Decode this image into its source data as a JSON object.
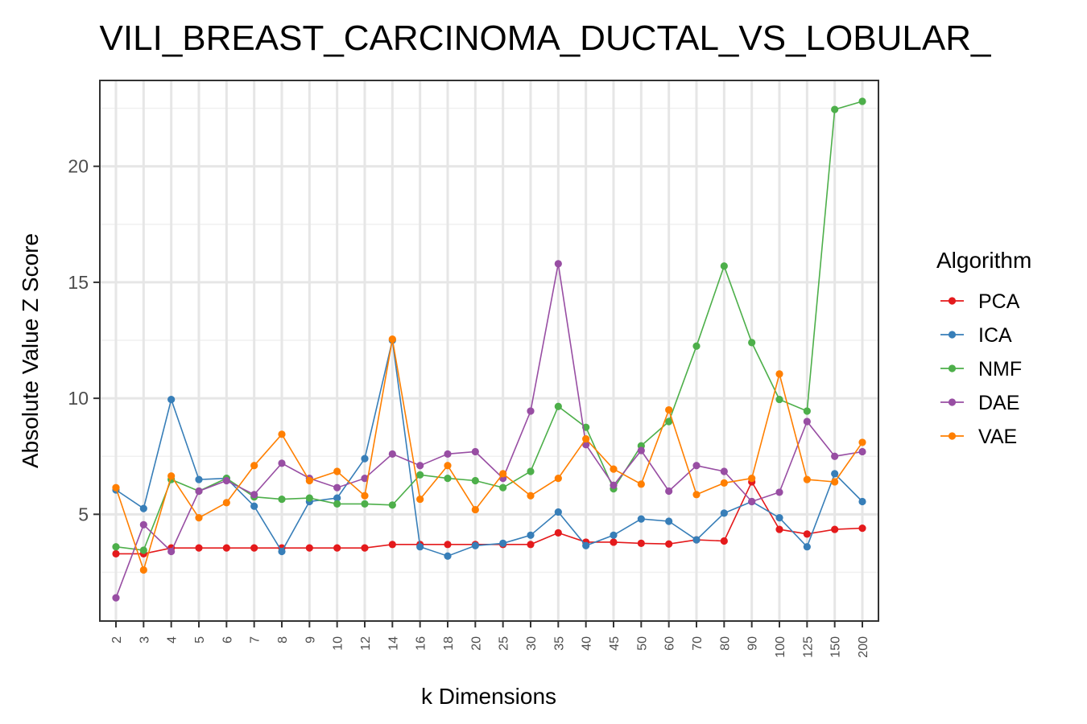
{
  "chart_data": {
    "type": "line",
    "title": "VILI_BREAST_CARCINOMA_DUCTAL_VS_LOBULAR_",
    "xlabel": "k Dimensions",
    "ylabel": "Absolute Value Z Score",
    "x": [
      "2",
      "3",
      "4",
      "5",
      "6",
      "7",
      "8",
      "9",
      "10",
      "12",
      "14",
      "16",
      "18",
      "20",
      "25",
      "30",
      "35",
      "40",
      "45",
      "50",
      "60",
      "70",
      "80",
      "90",
      "100",
      "125",
      "150",
      "200"
    ],
    "yticks": [
      5,
      10,
      15,
      20
    ],
    "ylim": [
      0.4,
      23.7
    ],
    "grid": true,
    "legend": {
      "title": "Algorithm",
      "position": "right"
    },
    "series": [
      {
        "name": "PCA",
        "color": "#E41A1C",
        "values": [
          3.3,
          3.3,
          3.55,
          3.55,
          3.55,
          3.55,
          3.55,
          3.55,
          3.55,
          3.55,
          3.7,
          3.7,
          3.7,
          3.7,
          3.7,
          3.7,
          4.2,
          3.8,
          3.8,
          3.75,
          3.72,
          3.9,
          3.85,
          6.4,
          4.35,
          4.15,
          4.35,
          4.4
        ]
      },
      {
        "name": "ICA",
        "color": "#377EB8",
        "values": [
          6.05,
          5.25,
          9.95,
          6.5,
          6.55,
          5.35,
          3.4,
          5.55,
          5.7,
          7.4,
          12.5,
          3.6,
          3.2,
          3.65,
          3.75,
          4.1,
          5.1,
          3.65,
          4.1,
          4.8,
          4.7,
          3.9,
          5.05,
          5.55,
          4.85,
          3.6,
          6.75,
          5.55
        ]
      },
      {
        "name": "NMF",
        "color": "#4DAF4A",
        "values": [
          3.6,
          3.45,
          6.5,
          6.0,
          6.55,
          5.75,
          5.65,
          5.7,
          5.45,
          5.45,
          5.4,
          6.7,
          6.55,
          6.45,
          6.15,
          6.85,
          9.65,
          8.75,
          6.1,
          7.95,
          9.0,
          12.25,
          15.7,
          12.4,
          9.95,
          9.45,
          22.45,
          22.8
        ]
      },
      {
        "name": "DAE",
        "color": "#984EA3",
        "values": [
          1.4,
          4.55,
          3.4,
          6.0,
          6.45,
          5.85,
          7.2,
          6.55,
          6.15,
          6.55,
          7.6,
          7.1,
          7.6,
          7.7,
          6.55,
          9.45,
          15.8,
          8.0,
          6.25,
          7.75,
          6.0,
          7.1,
          6.85,
          5.55,
          5.95,
          9.0,
          7.5,
          7.7
        ]
      },
      {
        "name": "VAE",
        "color": "#FF7F00",
        "values": [
          6.15,
          2.6,
          6.65,
          4.85,
          5.5,
          7.1,
          8.45,
          6.45,
          6.85,
          5.8,
          12.55,
          5.65,
          7.1,
          5.2,
          6.75,
          5.8,
          6.55,
          8.25,
          6.95,
          6.3,
          9.5,
          5.85,
          6.35,
          6.55,
          11.05,
          6.5,
          6.4,
          8.1
        ]
      }
    ]
  }
}
